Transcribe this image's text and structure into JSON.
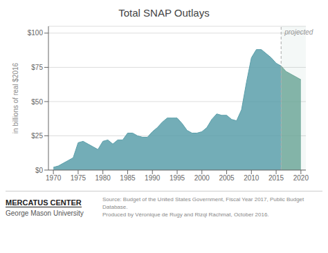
{
  "chart_data": {
    "type": "area",
    "title": "Total SNAP Outlays",
    "y_label": "in billions of real $2016",
    "x": [
      1970,
      1971,
      1972,
      1973,
      1974,
      1975,
      1976,
      1977,
      1978,
      1979,
      1980,
      1981,
      1982,
      1983,
      1984,
      1985,
      1986,
      1987,
      1988,
      1989,
      1990,
      1991,
      1992,
      1993,
      1994,
      1995,
      1996,
      1997,
      1998,
      1999,
      2000,
      2001,
      2002,
      2003,
      2004,
      2005,
      2006,
      2007,
      2008,
      2009,
      2010,
      2011,
      2012,
      2013,
      2014,
      2015,
      2016,
      2017,
      2018,
      2019,
      2020
    ],
    "series": [
      {
        "color": "#5b9faa",
        "values": [
          2,
          3,
          5,
          7,
          9,
          20,
          21,
          19,
          17,
          15,
          21,
          22,
          19,
          22,
          22,
          27,
          27,
          25,
          24,
          24,
          28,
          31,
          35,
          38,
          38,
          38,
          34,
          29,
          27,
          27,
          28,
          31,
          37,
          41,
          40,
          40,
          37,
          36,
          44,
          64,
          82,
          88,
          88,
          85,
          82,
          78,
          76,
          null,
          null,
          null,
          null
        ]
      },
      {
        "color": "#6fa89a",
        "values": [
          null,
          null,
          null,
          null,
          null,
          null,
          null,
          null,
          null,
          null,
          null,
          null,
          null,
          null,
          null,
          null,
          null,
          null,
          null,
          null,
          null,
          null,
          null,
          null,
          null,
          null,
          null,
          null,
          null,
          null,
          null,
          null,
          null,
          null,
          null,
          null,
          null,
          null,
          null,
          null,
          null,
          null,
          null,
          null,
          null,
          null,
          76,
          72,
          70,
          68,
          66
        ]
      }
    ],
    "xlim": [
      1969,
      2021
    ],
    "xticks": [
      1970,
      1975,
      1980,
      1985,
      1990,
      1995,
      2000,
      2005,
      2010,
      2015,
      2020
    ],
    "ylim": [
      0,
      105
    ],
    "yticks": [
      {
        "value": 0,
        "label": "$0"
      },
      {
        "value": 25,
        "label": "$25"
      },
      {
        "value": 50,
        "label": "$50"
      },
      {
        "value": 75,
        "label": "$75"
      },
      {
        "value": 100,
        "label": "$100"
      }
    ],
    "grid": true,
    "annotations": [
      {
        "text": "projected",
        "x": 2016
      },
      {
        "text": "MERCATUS CENTER"
      },
      {
        "text": "George Mason University"
      },
      {
        "text": "Source: Budget of the United States Government, Fiscal Year 2017, Public Budget Database."
      },
      {
        "text": "Produced by Véronique de Rugy and Rizqi Rachmat, October 2016."
      }
    ]
  }
}
